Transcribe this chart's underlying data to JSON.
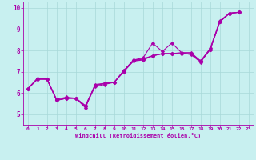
{
  "background_color": "#c8f0f0",
  "grid_color": "#a8d8d8",
  "line_color": "#aa00aa",
  "xlabel": "Windchill (Refroidissement éolien,°C)",
  "xlim": [
    -0.5,
    23.5
  ],
  "ylim": [
    4.5,
    10.3
  ],
  "yticks": [
    5,
    6,
    7,
    8,
    9,
    10
  ],
  "xticks": [
    0,
    1,
    2,
    3,
    4,
    5,
    6,
    7,
    8,
    9,
    10,
    11,
    12,
    13,
    14,
    15,
    16,
    17,
    18,
    19,
    20,
    21,
    22,
    23
  ],
  "line1_y": [
    6.2,
    6.7,
    6.65,
    5.7,
    5.8,
    5.75,
    5.3,
    6.4,
    6.45,
    6.5,
    7.05,
    7.55,
    7.65,
    8.35,
    7.95,
    8.35,
    7.9,
    7.9,
    7.5,
    8.1,
    9.4,
    9.75,
    9.8
  ],
  "line2_y": [
    6.2,
    6.65,
    6.65,
    5.65,
    5.75,
    5.75,
    5.4,
    6.35,
    6.45,
    6.5,
    7.05,
    7.5,
    7.6,
    7.75,
    7.85,
    7.85,
    7.85,
    7.85,
    7.5,
    8.05,
    9.35,
    9.75,
    9.8
  ],
  "line3_y": [
    6.2,
    6.65,
    6.65,
    5.65,
    5.75,
    5.75,
    5.4,
    6.35,
    6.45,
    6.5,
    7.05,
    7.55,
    7.6,
    7.75,
    7.85,
    7.85,
    7.85,
    7.85,
    7.5,
    8.05,
    9.35,
    9.75,
    9.8
  ],
  "line4_y": [
    6.2,
    6.65,
    6.65,
    5.65,
    5.75,
    5.75,
    5.35,
    6.3,
    6.4,
    6.5,
    7.0,
    7.5,
    7.55,
    7.75,
    7.85,
    7.85,
    7.9,
    7.8,
    7.45,
    8.05,
    9.35,
    9.75,
    9.8
  ]
}
